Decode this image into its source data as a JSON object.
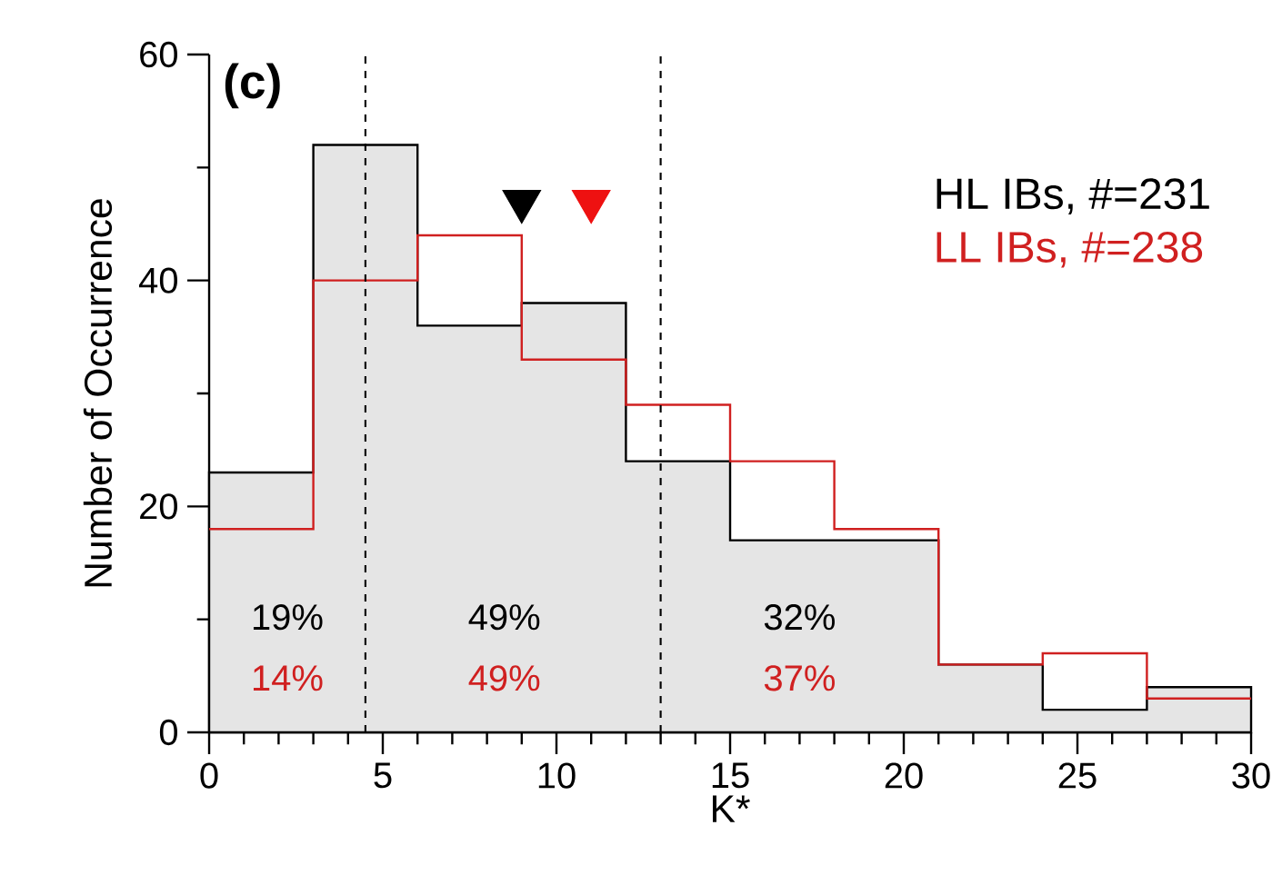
{
  "chart_data": {
    "type": "histogram",
    "title": "(c)",
    "xlabel": "K*",
    "ylabel": "Number of Occurrence",
    "bins": [
      0,
      3,
      6,
      9,
      12,
      15,
      18,
      21,
      24,
      27,
      30
    ],
    "series": [
      {
        "name": "HL IBs, #=231",
        "color": "#000000",
        "values": [
          23,
          52,
          36,
          38,
          24,
          17,
          17,
          6,
          2,
          4
        ]
      },
      {
        "name": "LL IBs, #=238",
        "color": "#d02020",
        "values": [
          18,
          40,
          44,
          33,
          29,
          24,
          18,
          6,
          7,
          3
        ]
      },
      {
        "type": "scatter",
        "marker": "triangle",
        "color": "#000000",
        "x": [
          9
        ],
        "values": [
          47
        ]
      },
      {
        "type": "scatter",
        "marker": "triangle",
        "color": "#ee1111",
        "x": [
          11
        ],
        "values": [
          47
        ]
      }
    ],
    "xlim": [
      0,
      30
    ],
    "ylim": [
      0,
      60
    ],
    "xticks": [
      0,
      5,
      10,
      15,
      20,
      25,
      30
    ],
    "yticks": [
      0,
      20,
      40,
      60
    ],
    "ref_lines": [
      {
        "axis": "x",
        "value": 4.5,
        "color": "#000000",
        "line_style": "dashed"
      },
      {
        "axis": "x",
        "value": 13,
        "color": "#000000",
        "line_style": "dashed"
      }
    ],
    "annotations": [
      "19%",
      "14%",
      "49%",
      "49%",
      "32%",
      "37%"
    ],
    "legend": "top right"
  }
}
